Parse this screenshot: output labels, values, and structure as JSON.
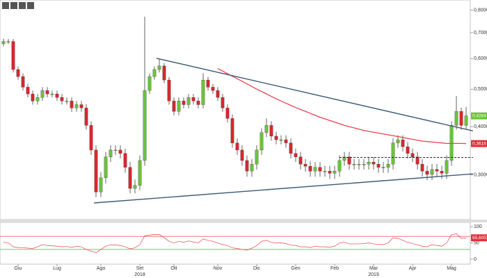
{
  "chart_data": [
    {
      "type": "candlestick",
      "log_scale": true,
      "up_color": "#6cc23a",
      "down_color": "#d9262e",
      "categories": [
        null,
        null,
        null,
        "Giu",
        null,
        null,
        null,
        null,
        null,
        null,
        null,
        "Lug",
        null,
        null,
        null,
        null,
        null,
        null,
        null,
        null,
        "Ago",
        null,
        null,
        null,
        null,
        null,
        null,
        null,
        "Set",
        null,
        null,
        null,
        null,
        null,
        null,
        "Ott",
        null,
        null,
        null,
        null,
        null,
        null,
        null,
        null,
        "Nov",
        null,
        null,
        null,
        null,
        null,
        null,
        null,
        "Dic",
        null,
        null,
        null,
        null,
        null,
        null,
        null,
        "Gen",
        null,
        null,
        null,
        null,
        null,
        null,
        null,
        "Feb",
        null,
        null,
        null,
        null,
        null,
        null,
        null,
        "Mar",
        null,
        null,
        null,
        null,
        null,
        null,
        null,
        "Apr",
        null,
        null,
        null,
        null,
        null,
        null,
        null,
        "Mag",
        null,
        null,
        null
      ],
      "years": [
        null,
        null,
        null,
        null,
        null,
        null,
        null,
        null,
        null,
        null,
        null,
        null,
        null,
        null,
        null,
        null,
        null,
        null,
        null,
        null,
        null,
        null,
        null,
        null,
        null,
        null,
        null,
        null,
        "2018",
        null,
        null,
        null,
        null,
        null,
        null,
        null,
        null,
        null,
        null,
        null,
        null,
        null,
        null,
        null,
        null,
        null,
        null,
        null,
        null,
        null,
        null,
        null,
        null,
        null,
        null,
        null,
        null,
        null,
        null,
        null,
        null,
        null,
        null,
        null,
        null,
        null,
        null,
        null,
        null,
        null,
        null,
        null,
        null,
        null,
        null,
        null,
        "2019",
        null,
        null,
        null,
        null,
        null,
        null,
        null,
        null,
        null,
        null,
        null,
        null,
        null,
        null,
        null,
        null,
        null,
        null,
        null
      ],
      "open": [
        0.655,
        0.664,
        0.664,
        0.562,
        0.539,
        0.506,
        0.486,
        0.466,
        0.476,
        0.496,
        0.486,
        0.486,
        0.476,
        0.466,
        0.466,
        0.447,
        0.456,
        0.447,
        0.403,
        0.348,
        0.271,
        0.295,
        0.334,
        0.348,
        0.348,
        0.341,
        0.314,
        0.277,
        0.282,
        0.327,
        0.496,
        0.539,
        0.562,
        0.574,
        0.528,
        0.466,
        0.438,
        0.466,
        0.456,
        0.476,
        0.466,
        0.456,
        0.528,
        0.506,
        0.496,
        0.476,
        0.447,
        0.42,
        0.363,
        0.348,
        0.327,
        0.307,
        0.32,
        0.348,
        0.386,
        0.403,
        0.378,
        0.37,
        0.37,
        0.363,
        0.341,
        0.334,
        0.32,
        0.316,
        0.307,
        0.314,
        0.307,
        0.307,
        0.303,
        0.307,
        0.327,
        0.334,
        0.32,
        0.32,
        0.32,
        0.32,
        0.324,
        0.32,
        0.314,
        0.314,
        0.32,
        0.363,
        0.37,
        0.355,
        0.341,
        0.334,
        0.32,
        0.307,
        0.301,
        0.31,
        0.307,
        0.303,
        0.327,
        0.403,
        0.438,
        0.403
      ],
      "high": [
        0.675,
        0.674,
        0.674,
        0.572,
        0.549,
        0.516,
        0.496,
        0.486,
        0.506,
        0.506,
        0.496,
        0.496,
        0.486,
        0.476,
        0.476,
        0.466,
        0.466,
        0.457,
        0.413,
        0.358,
        0.305,
        0.344,
        0.358,
        0.358,
        0.358,
        0.351,
        0.324,
        0.292,
        0.337,
        0.77,
        0.549,
        0.572,
        0.6,
        0.584,
        0.538,
        0.476,
        0.476,
        0.476,
        0.486,
        0.486,
        0.476,
        0.55,
        0.538,
        0.516,
        0.506,
        0.486,
        0.457,
        0.43,
        0.373,
        0.358,
        0.337,
        0.33,
        0.358,
        0.396,
        0.42,
        0.413,
        0.388,
        0.38,
        0.38,
        0.373,
        0.351,
        0.344,
        0.33,
        0.326,
        0.324,
        0.324,
        0.317,
        0.317,
        0.317,
        0.337,
        0.344,
        0.344,
        0.33,
        0.33,
        0.33,
        0.334,
        0.334,
        0.33,
        0.324,
        0.33,
        0.373,
        0.38,
        0.38,
        0.365,
        0.351,
        0.344,
        0.33,
        0.317,
        0.32,
        0.32,
        0.317,
        0.337,
        0.413,
        0.48,
        0.448,
        0.45
      ],
      "low": [
        0.645,
        0.654,
        0.552,
        0.529,
        0.496,
        0.476,
        0.456,
        0.456,
        0.466,
        0.476,
        0.476,
        0.466,
        0.456,
        0.456,
        0.437,
        0.437,
        0.437,
        0.393,
        0.338,
        0.263,
        0.263,
        0.285,
        0.324,
        0.338,
        0.331,
        0.304,
        0.269,
        0.269,
        0.274,
        0.317,
        0.486,
        0.529,
        0.552,
        0.518,
        0.456,
        0.428,
        0.428,
        0.446,
        0.446,
        0.456,
        0.446,
        0.446,
        0.496,
        0.486,
        0.466,
        0.437,
        0.41,
        0.353,
        0.338,
        0.317,
        0.297,
        0.297,
        0.31,
        0.338,
        0.376,
        0.368,
        0.36,
        0.36,
        0.353,
        0.331,
        0.324,
        0.31,
        0.306,
        0.297,
        0.297,
        0.297,
        0.297,
        0.293,
        0.293,
        0.297,
        0.317,
        0.31,
        0.31,
        0.31,
        0.31,
        0.31,
        0.31,
        0.304,
        0.304,
        0.304,
        0.31,
        0.353,
        0.345,
        0.331,
        0.324,
        0.31,
        0.297,
        0.291,
        0.291,
        0.297,
        0.293,
        0.293,
        0.317,
        0.393,
        0.393,
        0.393
      ],
      "close": [
        0.664,
        0.664,
        0.562,
        0.539,
        0.506,
        0.486,
        0.466,
        0.476,
        0.496,
        0.486,
        0.486,
        0.476,
        0.466,
        0.466,
        0.447,
        0.456,
        0.447,
        0.403,
        0.348,
        0.271,
        0.295,
        0.334,
        0.348,
        0.348,
        0.341,
        0.314,
        0.277,
        0.282,
        0.327,
        0.496,
        0.539,
        0.562,
        0.574,
        0.528,
        0.466,
        0.438,
        0.466,
        0.456,
        0.476,
        0.466,
        0.456,
        0.528,
        0.506,
        0.496,
        0.476,
        0.447,
        0.42,
        0.363,
        0.348,
        0.327,
        0.307,
        0.32,
        0.348,
        0.386,
        0.403,
        0.378,
        0.37,
        0.37,
        0.363,
        0.341,
        0.334,
        0.32,
        0.316,
        0.307,
        0.314,
        0.307,
        0.307,
        0.303,
        0.307,
        0.327,
        0.334,
        0.32,
        0.32,
        0.32,
        0.32,
        0.324,
        0.32,
        0.314,
        0.314,
        0.32,
        0.363,
        0.37,
        0.355,
        0.341,
        0.334,
        0.32,
        0.307,
        0.301,
        0.31,
        0.307,
        0.303,
        0.327,
        0.403,
        0.438,
        0.403,
        0.4264
      ],
      "moving_average": {
        "color": "#e8434b",
        "values": [
          null,
          null,
          null,
          null,
          null,
          null,
          null,
          null,
          null,
          null,
          null,
          null,
          null,
          null,
          null,
          null,
          null,
          null,
          null,
          null,
          null,
          null,
          null,
          null,
          null,
          null,
          null,
          null,
          null,
          null,
          null,
          null,
          null,
          null,
          null,
          null,
          null,
          null,
          null,
          null,
          null,
          null,
          null,
          null,
          0.565,
          0.557,
          0.548,
          0.54,
          0.532,
          0.524,
          0.516,
          0.508,
          0.5,
          0.493,
          0.486,
          0.479,
          0.472,
          0.466,
          0.46,
          0.454,
          0.448,
          0.443,
          0.438,
          0.433,
          0.428,
          0.423,
          0.419,
          0.415,
          0.411,
          0.407,
          0.403,
          0.4,
          0.397,
          0.394,
          0.391,
          0.389,
          0.387,
          0.385,
          0.383,
          0.381,
          0.379,
          0.377,
          0.375,
          0.373,
          0.371,
          0.369,
          0.367,
          0.366,
          0.365,
          0.364,
          0.363,
          0.362,
          0.362,
          0.362,
          0.362,
          0.3616
        ]
      },
      "trendlines": [
        {
          "color": "#3d5a78",
          "dashed": false,
          "points": [
            [
              31.4,
              0.601
            ],
            [
              96.4,
              0.39
            ]
          ]
        },
        {
          "color": "#3d5a78",
          "dashed": false,
          "points": [
            [
              18.6,
              0.254
            ],
            [
              96.4,
              0.302
            ]
          ]
        },
        {
          "color": "#222222",
          "dashed": true,
          "points": [
            [
              69,
              0.333
            ],
            [
              96.4,
              0.333
            ]
          ]
        }
      ],
      "markers": [
        {
          "value": 0.4264,
          "label": "0,4264",
          "color": "#6cc23a"
        },
        {
          "value": 0.3616,
          "label": "0,3616",
          "color": "#e0303a"
        }
      ],
      "ylim": [
        0.23,
        0.85
      ],
      "yticks": [
        {
          "value": 0.8,
          "label": "0,8000"
        },
        {
          "value": 0.7,
          "label": "0,7000"
        },
        {
          "value": 0.6,
          "label": "0,6000"
        },
        {
          "value": 0.5,
          "label": "0,5000"
        },
        {
          "value": 0.4,
          "label": "0,4000"
        },
        {
          "value": 0.3,
          "label": "0,3000"
        }
      ]
    },
    {
      "type": "line",
      "color": "#e8434b",
      "values": [
        52,
        50,
        38,
        36,
        35,
        34,
        33,
        38,
        45,
        42,
        41,
        40,
        38,
        39,
        36,
        40,
        38,
        30,
        25,
        20,
        30,
        40,
        44,
        44,
        42,
        38,
        32,
        35,
        45,
        72,
        74,
        76,
        76,
        66,
        55,
        50,
        55,
        52,
        56,
        53,
        50,
        62,
        58,
        55,
        50,
        45,
        42,
        35,
        33,
        30,
        28,
        34,
        42,
        55,
        58,
        52,
        50,
        50,
        48,
        43,
        42,
        38,
        38,
        36,
        40,
        38,
        38,
        37,
        40,
        50,
        52,
        47,
        47,
        47,
        48,
        50,
        47,
        45,
        45,
        50,
        66,
        64,
        58,
        52,
        48,
        44,
        40,
        38,
        45,
        42,
        40,
        50,
        75,
        78,
        64,
        65.6053
      ],
      "levels": [
        {
          "value": 70,
          "color": "#e8434b"
        },
        {
          "value": 30,
          "color": "#4caf50"
        }
      ],
      "markers": [
        {
          "value": 65.6053,
          "label": "65,6053",
          "color": "#e0303a"
        }
      ],
      "ylim": [
        -15,
        113
      ],
      "yticks": [
        100,
        50,
        0
      ]
    }
  ]
}
